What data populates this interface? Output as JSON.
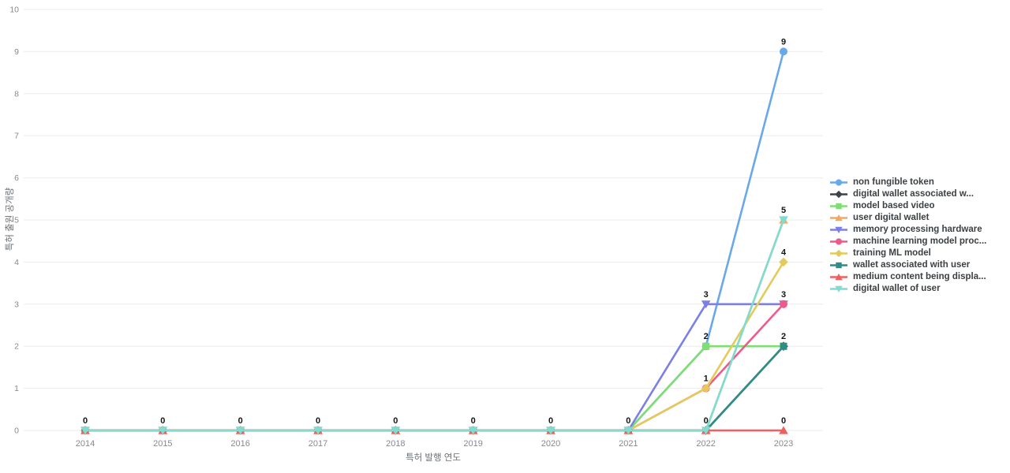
{
  "chart_data": {
    "type": "line",
    "title": "",
    "xlabel": "특허 발행 연도",
    "ylabel": "특허 출원 공개량",
    "x": [
      2014,
      2015,
      2016,
      2017,
      2018,
      2019,
      2020,
      2021,
      2022,
      2023
    ],
    "ylim": [
      0,
      10
    ],
    "yticks": [
      0,
      1,
      2,
      3,
      4,
      5,
      6,
      7,
      8,
      9,
      10
    ],
    "grid": "horizontal",
    "legend_position": "right",
    "data_labels": true,
    "series": [
      {
        "name": "non fungible token",
        "color": "#69A8E9",
        "marker": "circle",
        "values": [
          0,
          0,
          0,
          0,
          0,
          0,
          0,
          0,
          2,
          9
        ]
      },
      {
        "name": "digital wallet associated w...",
        "color": "#3E4348",
        "marker": "diamond",
        "values": [
          0,
          0,
          0,
          0,
          0,
          0,
          0,
          0,
          0,
          2
        ]
      },
      {
        "name": "model based video",
        "color": "#7EDE71",
        "marker": "square",
        "values": [
          0,
          0,
          0,
          0,
          0,
          0,
          0,
          0,
          2,
          2
        ]
      },
      {
        "name": "user digital wallet",
        "color": "#F3A95F",
        "marker": "triangle-up",
        "values": [
          0,
          0,
          0,
          0,
          0,
          0,
          0,
          0,
          0,
          5
        ]
      },
      {
        "name": "memory processing hardware",
        "color": "#7C80E4",
        "marker": "triangle-down",
        "values": [
          0,
          0,
          0,
          0,
          0,
          0,
          0,
          0,
          3,
          3
        ]
      },
      {
        "name": "machine learning model proc...",
        "color": "#EE5A8B",
        "marker": "circle",
        "values": [
          0,
          0,
          0,
          0,
          0,
          0,
          0,
          0,
          1,
          3
        ]
      },
      {
        "name": "training ML model",
        "color": "#E4CA5A",
        "marker": "diamond",
        "values": [
          0,
          0,
          0,
          0,
          0,
          0,
          0,
          0,
          1,
          4
        ]
      },
      {
        "name": "wallet associated with user",
        "color": "#2D8E86",
        "marker": "square",
        "values": [
          0,
          0,
          0,
          0,
          0,
          0,
          0,
          0,
          0,
          2
        ]
      },
      {
        "name": "medium content being displa...",
        "color": "#EE5F5F",
        "marker": "triangle-up",
        "values": [
          0,
          0,
          0,
          0,
          0,
          0,
          0,
          0,
          0,
          0
        ]
      },
      {
        "name": "digital wallet of user",
        "color": "#80DCD1",
        "marker": "triangle-down",
        "values": [
          0,
          0,
          0,
          0,
          0,
          0,
          0,
          0,
          0,
          5
        ]
      }
    ]
  },
  "colors": {
    "background": "#ffffff",
    "grid": "#ebebeb",
    "tick_text": "#85898f",
    "axis_title_text": "#6b6f73",
    "data_label": "#141414",
    "legend_text": "#3c4043"
  }
}
